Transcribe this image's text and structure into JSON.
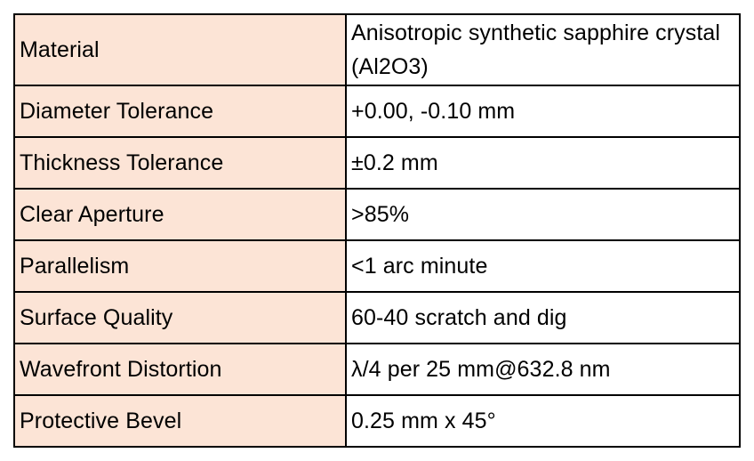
{
  "table": {
    "rows": [
      {
        "label": "Material",
        "value": "Anisotropic synthetic sapphire crystal (Al2O3)"
      },
      {
        "label": "Diameter Tolerance",
        "value": "+0.00, -0.10 mm"
      },
      {
        "label": "Thickness Tolerance",
        "value": "±0.2 mm"
      },
      {
        "label": "Clear Aperture",
        "value": ">85%"
      },
      {
        "label": "Parallelism",
        "value": "<1 arc minute"
      },
      {
        "label": "Surface Quality",
        "value": "60-40 scratch and dig"
      },
      {
        "label": "Wavefront Distortion",
        "value": "λ/4 per 25 mm@632.8 nm"
      },
      {
        "label": "Protective Bevel",
        "value": "0.25 mm x 45°"
      }
    ]
  },
  "colors": {
    "label_background": "#fce4d6",
    "value_background": "#ffffff",
    "border": "#000000"
  }
}
